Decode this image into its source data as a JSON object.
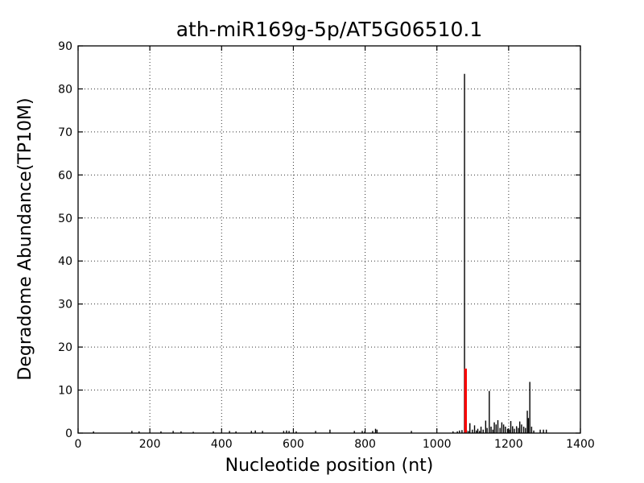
{
  "chart_data": {
    "type": "bar",
    "title": "ath-miR169g-5p/AT5G06510.1",
    "xlabel": "Nucleotide position (nt)",
    "ylabel": "Degradome Abundance(TP10M)",
    "xlim": [
      0,
      1400
    ],
    "ylim": [
      0,
      90
    ],
    "xticks": [
      0,
      200,
      400,
      600,
      800,
      1000,
      1200,
      1400
    ],
    "yticks": [
      0,
      10,
      20,
      30,
      40,
      50,
      60,
      70,
      80,
      90
    ],
    "grid": "dotted",
    "legend": "none",
    "bar_color": "#000000",
    "highlight_color": "#ff0000",
    "bars": [
      [
        43,
        0.4
      ],
      [
        150,
        0.5
      ],
      [
        170,
        0.4
      ],
      [
        231,
        0.4
      ],
      [
        265,
        0.5
      ],
      [
        287,
        0.4
      ],
      [
        321,
        0.3
      ],
      [
        377,
        0.4
      ],
      [
        422,
        0.5
      ],
      [
        440,
        0.4
      ],
      [
        483,
        0.5
      ],
      [
        494,
        0.6
      ],
      [
        514,
        0.5
      ],
      [
        573,
        0.5
      ],
      [
        581,
        0.6
      ],
      [
        588,
        0.5
      ],
      [
        608,
        0.4
      ],
      [
        662,
        0.5
      ],
      [
        702,
        0.8
      ],
      [
        770,
        0.5
      ],
      [
        792,
        0.5
      ],
      [
        799,
        0.4
      ],
      [
        821,
        0.5
      ],
      [
        829,
        1.0
      ],
      [
        833,
        0.8
      ],
      [
        929,
        0.5
      ],
      [
        1045,
        0.4
      ],
      [
        1057,
        0.4
      ],
      [
        1063,
        0.6
      ],
      [
        1070,
        0.7
      ],
      [
        1077,
        83.5
      ],
      [
        1083,
        0.6
      ],
      [
        1088,
        0.5
      ],
      [
        1092,
        2.3
      ],
      [
        1099,
        0.8
      ],
      [
        1105,
        1.8
      ],
      [
        1110,
        0.6
      ],
      [
        1114,
        1.0
      ],
      [
        1119,
        0.5
      ],
      [
        1123,
        1.5
      ],
      [
        1129,
        0.8
      ],
      [
        1136,
        2.9
      ],
      [
        1140,
        1.2
      ],
      [
        1146,
        9.8
      ],
      [
        1151,
        1.5
      ],
      [
        1156,
        0.8
      ],
      [
        1160,
        2.5
      ],
      [
        1165,
        2.0
      ],
      [
        1170,
        3.0
      ],
      [
        1176,
        1.2
      ],
      [
        1181,
        2.5
      ],
      [
        1186,
        2.0
      ],
      [
        1191,
        1.5
      ],
      [
        1197,
        1.0
      ],
      [
        1202,
        0.8
      ],
      [
        1206,
        2.8
      ],
      [
        1211,
        1.6
      ],
      [
        1216,
        1.0
      ],
      [
        1222,
        1.6
      ],
      [
        1227,
        1.2
      ],
      [
        1231,
        2.7
      ],
      [
        1236,
        2.0
      ],
      [
        1242,
        1.5
      ],
      [
        1247,
        1.2
      ],
      [
        1252,
        5.2
      ],
      [
        1255,
        3.5
      ],
      [
        1259,
        11.9
      ],
      [
        1264,
        1.5
      ],
      [
        1270,
        0.6
      ],
      [
        1288,
        0.8
      ],
      [
        1297,
        0.8
      ],
      [
        1305,
        0.8
      ]
    ],
    "highlight_bar": {
      "x": 1080,
      "y": 15.0
    }
  }
}
